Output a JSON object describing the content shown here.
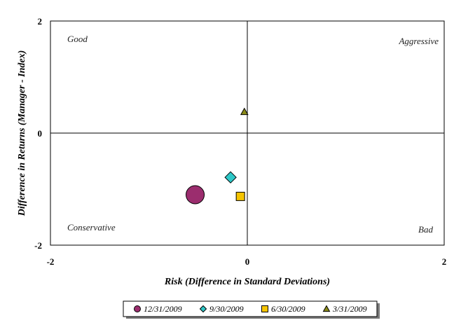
{
  "chart_data": {
    "type": "scatter",
    "xlabel": "Risk (Difference in Standard Deviations)",
    "ylabel": "Difference in Returns (Manager - Index)",
    "xlim": [
      -2,
      2
    ],
    "ylim": [
      -2,
      2
    ],
    "x_ticks": [
      "-2",
      "0",
      "2"
    ],
    "y_ticks": [
      "2",
      "0",
      "-2"
    ],
    "grid": false,
    "legend_position": "bottom",
    "quadrant_labels": {
      "top_left": "Good",
      "top_right": "Aggressive",
      "bottom_left": "Conservative",
      "bottom_right": "Bad"
    },
    "series": [
      {
        "name": "12/31/2009",
        "marker": "circle",
        "color": "#9b2d6e",
        "x": -0.53,
        "y": -1.1
      },
      {
        "name": "9/30/2009",
        "marker": "diamond",
        "color": "#2ec8c8",
        "x": -0.17,
        "y": -0.79
      },
      {
        "name": "6/30/2009",
        "marker": "square",
        "color": "#f5c400",
        "x": -0.07,
        "y": -1.13
      },
      {
        "name": "3/31/2009",
        "marker": "triangle",
        "color": "#8a8a18",
        "x": -0.03,
        "y": 0.38
      }
    ]
  }
}
